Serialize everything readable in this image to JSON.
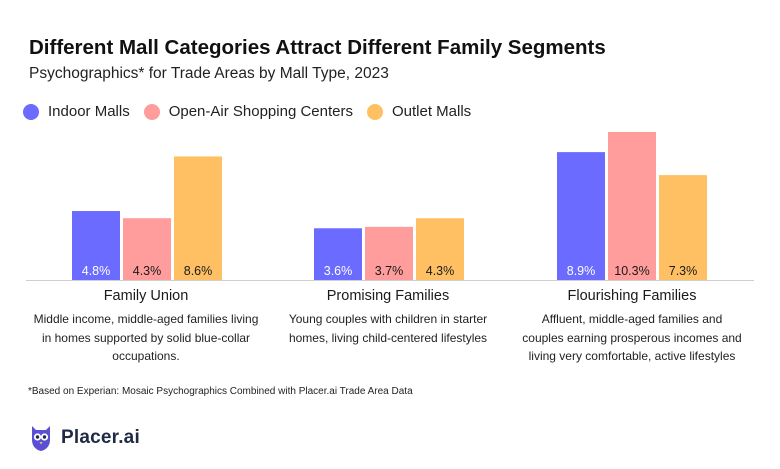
{
  "header": {
    "title": "Different Mall Categories Attract Different Family Segments",
    "subtitle": "Psychographics* for Trade Areas by Mall Type, 2023"
  },
  "legend": [
    {
      "label": "Indoor Malls",
      "color": "#6b6bff"
    },
    {
      "label": "Open-Air Shopping Centers",
      "color": "#ff9c9c"
    },
    {
      "label": "Outlet Malls",
      "color": "#ffc064"
    }
  ],
  "chart_data": {
    "type": "bar",
    "title": "Different Mall Categories Attract Different Family Segments",
    "subtitle": "Psychographics* for Trade Areas by Mall Type, 2023",
    "categories": [
      "Family Union",
      "Promising Families",
      "Flourishing Families"
    ],
    "descriptions": [
      "Middle income, middle-aged families living in homes supported by solid blue-collar occupations.",
      "Young couples with children in starter homes, living child-centered lifestyles",
      "Affluent, middle-aged families and couples earning prosperous incomes and living very comfortable, active lifestyles"
    ],
    "series": [
      {
        "name": "Indoor Malls",
        "color": "#6b6bff",
        "values": [
          4.8,
          3.6,
          8.9
        ],
        "labels": [
          "4.8%",
          "3.6%",
          "8.9%"
        ]
      },
      {
        "name": "Open-Air Shopping Centers",
        "color": "#ff9c9c",
        "values": [
          4.3,
          3.7,
          10.3
        ],
        "labels": [
          "4.3%",
          "3.7%",
          "10.3%"
        ]
      },
      {
        "name": "Outlet Malls",
        "color": "#ffc064",
        "values": [
          8.6,
          4.3,
          7.3
        ],
        "labels": [
          "8.6%",
          "4.3%",
          "7.3%"
        ]
      }
    ],
    "ylim": [
      0,
      11
    ],
    "xlabel": "",
    "ylabel": "",
    "grid": false,
    "legend_position": "top-left"
  },
  "footnote": "*Based on Experian: Mosaic Psychographics Combined with Placer.ai Trade Area Data",
  "brand": {
    "name": "Placer.ai",
    "color": "#5b4fd6"
  }
}
